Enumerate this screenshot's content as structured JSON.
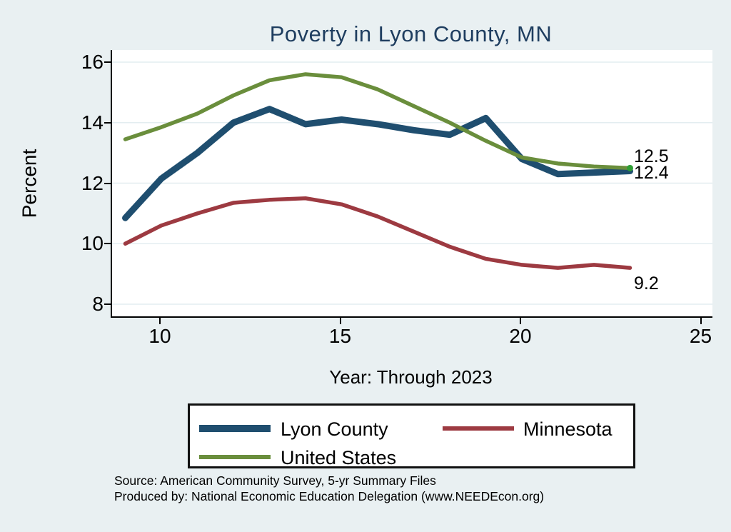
{
  "title": "Poverty in Lyon County, MN",
  "colors": {
    "background": "#e9f0f2",
    "plot_background": "#ffffff",
    "gridline": "#e3edf0",
    "axis": "#000000",
    "title_text": "#1e3d5f",
    "lyon_county_line": "#1f4e6f",
    "minnesota_line": "#9d3a41",
    "united_states_line": "#6a8e3c",
    "end_marker": "#2f9e35"
  },
  "chart_data": {
    "type": "line",
    "title": "Poverty in Lyon County, MN",
    "xlabel": "Year: Through 2023",
    "ylabel": "Percent",
    "x": [
      9,
      10,
      11,
      12,
      13,
      14,
      15,
      16,
      17,
      18,
      19,
      20,
      21,
      22,
      23
    ],
    "x_ticks": [
      10,
      15,
      20,
      25
    ],
    "y_ticks": [
      8,
      10,
      12,
      14,
      16
    ],
    "xlim": [
      8.6,
      25.3
    ],
    "ylim": [
      7.6,
      16.4
    ],
    "grid": "horizontal",
    "legend_position": "bottom",
    "series": [
      {
        "name": "Lyon County",
        "color": "#1f4e6f",
        "stroke_width": 9,
        "values": [
          10.85,
          12.15,
          13.0,
          14.0,
          14.45,
          13.95,
          14.1,
          13.95,
          13.75,
          13.6,
          14.15,
          12.8,
          12.3,
          12.35,
          12.4
        ],
        "end_label": "12.4"
      },
      {
        "name": "Minnesota",
        "color": "#9d3a41",
        "stroke_width": 5.5,
        "values": [
          10.0,
          10.6,
          11.0,
          11.35,
          11.45,
          11.5,
          11.3,
          10.9,
          10.4,
          9.9,
          9.5,
          9.3,
          9.2,
          9.3,
          9.2
        ],
        "end_label": "9.2"
      },
      {
        "name": "United States",
        "color": "#6a8e3c",
        "stroke_width": 5.5,
        "values": [
          13.45,
          13.85,
          14.3,
          14.9,
          15.4,
          15.6,
          15.5,
          15.1,
          14.55,
          14.0,
          13.4,
          12.85,
          12.65,
          12.55,
          12.5
        ],
        "end_label": "12.5",
        "end_marker_color": "#2f9e35"
      }
    ]
  },
  "end_labels": {
    "united_states": "12.5",
    "lyon_county": "12.4",
    "minnesota": "9.2"
  },
  "legend": {
    "items": [
      "Lyon County",
      "Minnesota",
      "United States"
    ]
  },
  "source": {
    "line1": "Source: American Community Survey, 5-yr Summary Files",
    "line2": "Produced by: National Economic Education Delegation (www.NEEDEcon.org)"
  }
}
